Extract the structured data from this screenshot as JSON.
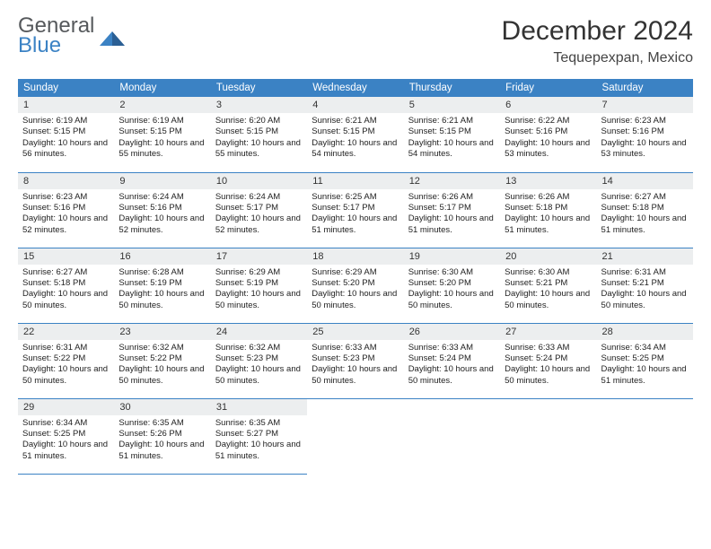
{
  "logo": {
    "line1": "General",
    "line2": "Blue"
  },
  "title": "December 2024",
  "location": "Tequepexpan, Mexico",
  "colors": {
    "header_bg": "#3b82c4",
    "header_text": "#ffffff",
    "daynum_bg": "#eceeef",
    "border": "#3b82c4",
    "logo_gray": "#56595c",
    "logo_blue": "#3b82c4"
  },
  "day_headers": [
    "Sunday",
    "Monday",
    "Tuesday",
    "Wednesday",
    "Thursday",
    "Friday",
    "Saturday"
  ],
  "weeks": [
    [
      {
        "num": "1",
        "sunrise": "6:19 AM",
        "sunset": "5:15 PM",
        "daylight": "10 hours and 56 minutes."
      },
      {
        "num": "2",
        "sunrise": "6:19 AM",
        "sunset": "5:15 PM",
        "daylight": "10 hours and 55 minutes."
      },
      {
        "num": "3",
        "sunrise": "6:20 AM",
        "sunset": "5:15 PM",
        "daylight": "10 hours and 55 minutes."
      },
      {
        "num": "4",
        "sunrise": "6:21 AM",
        "sunset": "5:15 PM",
        "daylight": "10 hours and 54 minutes."
      },
      {
        "num": "5",
        "sunrise": "6:21 AM",
        "sunset": "5:15 PM",
        "daylight": "10 hours and 54 minutes."
      },
      {
        "num": "6",
        "sunrise": "6:22 AM",
        "sunset": "5:16 PM",
        "daylight": "10 hours and 53 minutes."
      },
      {
        "num": "7",
        "sunrise": "6:23 AM",
        "sunset": "5:16 PM",
        "daylight": "10 hours and 53 minutes."
      }
    ],
    [
      {
        "num": "8",
        "sunrise": "6:23 AM",
        "sunset": "5:16 PM",
        "daylight": "10 hours and 52 minutes."
      },
      {
        "num": "9",
        "sunrise": "6:24 AM",
        "sunset": "5:16 PM",
        "daylight": "10 hours and 52 minutes."
      },
      {
        "num": "10",
        "sunrise": "6:24 AM",
        "sunset": "5:17 PM",
        "daylight": "10 hours and 52 minutes."
      },
      {
        "num": "11",
        "sunrise": "6:25 AM",
        "sunset": "5:17 PM",
        "daylight": "10 hours and 51 minutes."
      },
      {
        "num": "12",
        "sunrise": "6:26 AM",
        "sunset": "5:17 PM",
        "daylight": "10 hours and 51 minutes."
      },
      {
        "num": "13",
        "sunrise": "6:26 AM",
        "sunset": "5:18 PM",
        "daylight": "10 hours and 51 minutes."
      },
      {
        "num": "14",
        "sunrise": "6:27 AM",
        "sunset": "5:18 PM",
        "daylight": "10 hours and 51 minutes."
      }
    ],
    [
      {
        "num": "15",
        "sunrise": "6:27 AM",
        "sunset": "5:18 PM",
        "daylight": "10 hours and 50 minutes."
      },
      {
        "num": "16",
        "sunrise": "6:28 AM",
        "sunset": "5:19 PM",
        "daylight": "10 hours and 50 minutes."
      },
      {
        "num": "17",
        "sunrise": "6:29 AM",
        "sunset": "5:19 PM",
        "daylight": "10 hours and 50 minutes."
      },
      {
        "num": "18",
        "sunrise": "6:29 AM",
        "sunset": "5:20 PM",
        "daylight": "10 hours and 50 minutes."
      },
      {
        "num": "19",
        "sunrise": "6:30 AM",
        "sunset": "5:20 PM",
        "daylight": "10 hours and 50 minutes."
      },
      {
        "num": "20",
        "sunrise": "6:30 AM",
        "sunset": "5:21 PM",
        "daylight": "10 hours and 50 minutes."
      },
      {
        "num": "21",
        "sunrise": "6:31 AM",
        "sunset": "5:21 PM",
        "daylight": "10 hours and 50 minutes."
      }
    ],
    [
      {
        "num": "22",
        "sunrise": "6:31 AM",
        "sunset": "5:22 PM",
        "daylight": "10 hours and 50 minutes."
      },
      {
        "num": "23",
        "sunrise": "6:32 AM",
        "sunset": "5:22 PM",
        "daylight": "10 hours and 50 minutes."
      },
      {
        "num": "24",
        "sunrise": "6:32 AM",
        "sunset": "5:23 PM",
        "daylight": "10 hours and 50 minutes."
      },
      {
        "num": "25",
        "sunrise": "6:33 AM",
        "sunset": "5:23 PM",
        "daylight": "10 hours and 50 minutes."
      },
      {
        "num": "26",
        "sunrise": "6:33 AM",
        "sunset": "5:24 PM",
        "daylight": "10 hours and 50 minutes."
      },
      {
        "num": "27",
        "sunrise": "6:33 AM",
        "sunset": "5:24 PM",
        "daylight": "10 hours and 50 minutes."
      },
      {
        "num": "28",
        "sunrise": "6:34 AM",
        "sunset": "5:25 PM",
        "daylight": "10 hours and 51 minutes."
      }
    ],
    [
      {
        "num": "29",
        "sunrise": "6:34 AM",
        "sunset": "5:25 PM",
        "daylight": "10 hours and 51 minutes."
      },
      {
        "num": "30",
        "sunrise": "6:35 AM",
        "sunset": "5:26 PM",
        "daylight": "10 hours and 51 minutes."
      },
      {
        "num": "31",
        "sunrise": "6:35 AM",
        "sunset": "5:27 PM",
        "daylight": "10 hours and 51 minutes."
      },
      null,
      null,
      null,
      null
    ]
  ],
  "labels": {
    "sunrise": "Sunrise:",
    "sunset": "Sunset:",
    "daylight": "Daylight:"
  }
}
